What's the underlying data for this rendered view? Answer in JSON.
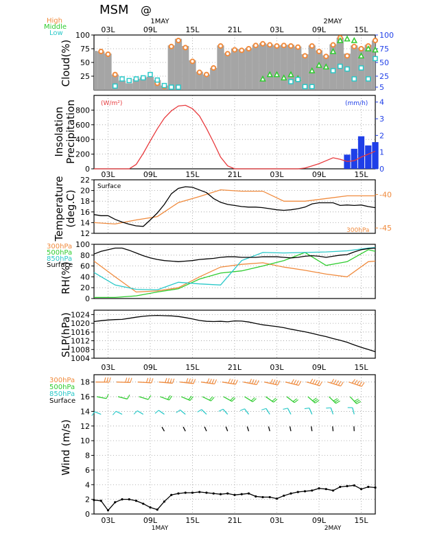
{
  "header": {
    "model": "MSM",
    "location": "@"
  },
  "time_axis": {
    "ticks": [
      "03L",
      "09L",
      "15L",
      "21L",
      "03L",
      "09L",
      "15L"
    ],
    "dates": [
      {
        "label": "1MAY",
        "tick_index": 1
      },
      {
        "label": "2MAY",
        "tick_index": 5
      }
    ]
  },
  "legend_colors": {
    "high": "#f08a3c",
    "middle": "#2ecc2e",
    "low": "#28c8c8",
    "surface": "#000000",
    "insolation": "#e8393c",
    "precip": "#1f3fe8",
    "cloud_fill": "#a5a5a5"
  },
  "chart_data": [
    {
      "id": "cloud",
      "type": "area",
      "ylabel": "Cloud(%)",
      "ylim": [
        0,
        100
      ],
      "yticks_left": [
        25,
        50,
        75,
        100
      ],
      "yticks_right": [
        5,
        25,
        50,
        75,
        100
      ],
      "legend": [
        "High",
        "Middle",
        "Low"
      ],
      "series": [
        {
          "name": "Cloud",
          "x": [
            0,
            1,
            2,
            3,
            4,
            5,
            6,
            7,
            8,
            9,
            10,
            11,
            12,
            13,
            14,
            15,
            16,
            17,
            18,
            19,
            20,
            21,
            22,
            23,
            24,
            25,
            26,
            27,
            28,
            29,
            30,
            31,
            32,
            33,
            34,
            35,
            36,
            37,
            38,
            39,
            40
          ],
          "values": [
            71,
            70,
            66,
            28,
            17,
            12,
            20,
            23,
            24,
            18,
            8,
            81,
            93,
            80,
            54,
            33,
            28,
            40,
            81,
            67,
            75,
            74,
            76,
            82,
            85,
            83,
            81,
            82,
            82,
            79,
            65,
            81,
            72,
            63,
            83,
            95,
            66,
            81,
            77,
            82,
            90
          ]
        },
        {
          "name": "High",
          "x": [
            1,
            2,
            3,
            9,
            10,
            11,
            12,
            13,
            14,
            15,
            16,
            17,
            18,
            19,
            20,
            21,
            22,
            23,
            24,
            25,
            26,
            27,
            28,
            29,
            30,
            31,
            32,
            33,
            34,
            35,
            36,
            37,
            38,
            39,
            40
          ],
          "values": [
            70,
            65,
            28,
            12,
            6,
            79,
            90,
            77,
            52,
            32,
            28,
            40,
            80,
            66,
            73,
            72,
            75,
            81,
            84,
            82,
            80,
            81,
            80,
            78,
            62,
            80,
            70,
            61,
            82,
            95,
            62,
            79,
            75,
            80,
            90
          ]
        },
        {
          "name": "Middle",
          "x": [
            24,
            25,
            26,
            27,
            28,
            29,
            31,
            32,
            33,
            34,
            35,
            36,
            37,
            38,
            39,
            40
          ],
          "values": [
            20,
            28,
            28,
            22,
            28,
            21,
            35,
            45,
            42,
            70,
            90,
            93,
            90,
            62,
            75,
            73
          ]
        },
        {
          "name": "Low",
          "x": [
            3,
            4,
            5,
            6,
            7,
            8,
            9,
            10,
            11,
            12,
            28,
            29,
            30,
            31,
            34,
            35,
            36,
            37,
            38,
            39,
            40
          ],
          "values": [
            7,
            20,
            17,
            20,
            22,
            28,
            18,
            8,
            5,
            5,
            15,
            19,
            6,
            6,
            35,
            43,
            38,
            20,
            40,
            20,
            57
          ]
        }
      ]
    },
    {
      "id": "insolation",
      "type": "line+bar",
      "ylabel": "Insolation",
      "ylabel2": "Precipitation",
      "unit_left": "(W/m²)",
      "unit_right": "(mm/h)",
      "ylim": [
        0,
        1000
      ],
      "yticks_left": [
        0,
        200,
        400,
        600,
        800
      ],
      "yticks_right": [
        0,
        1,
        2,
        3,
        4
      ],
      "series": [
        {
          "name": "Insolation",
          "x": [
            0,
            1,
            2,
            3,
            4,
            5,
            6,
            7,
            8,
            9,
            10,
            11,
            12,
            13,
            14,
            15,
            16,
            17,
            18,
            19,
            20,
            21,
            22,
            23,
            24,
            25,
            26,
            27,
            28,
            29,
            30,
            31,
            32,
            33,
            34,
            35,
            36,
            37,
            38,
            39,
            40
          ],
          "values": [
            0,
            0,
            0,
            0,
            0,
            0,
            60,
            210,
            380,
            545,
            690,
            790,
            855,
            865,
            820,
            720,
            550,
            360,
            160,
            40,
            0,
            0,
            0,
            0,
            0,
            0,
            0,
            0,
            0,
            0,
            10,
            40,
            70,
            110,
            150,
            130,
            100,
            110,
            160,
            200,
            240
          ]
        },
        {
          "name": "Precipitation",
          "x": [
            36,
            37,
            38,
            39,
            40
          ],
          "values": [
            0.85,
            1.2,
            1.95,
            1.4,
            1.6
          ]
        }
      ]
    },
    {
      "id": "temperature",
      "type": "line",
      "ylabel": "Temperature",
      "ylabel2": "(deg.C)",
      "ylim": [
        12,
        22
      ],
      "yticks_left": [
        12,
        14,
        16,
        18,
        20,
        22
      ],
      "yticks_right": [
        -45,
        -40
      ],
      "series": [
        {
          "name": "Surface",
          "x": [
            0,
            1,
            2,
            3,
            4,
            5,
            6,
            7,
            8,
            9,
            10,
            11,
            12,
            13,
            14,
            15,
            16,
            17,
            18,
            19,
            20,
            21,
            22,
            23,
            24,
            25,
            26,
            27,
            28,
            29,
            30,
            31,
            32,
            33,
            34,
            35,
            36,
            37,
            38,
            39,
            40
          ],
          "values": [
            15.5,
            15.3,
            15.3,
            14.6,
            14.1,
            13.7,
            13.4,
            13.3,
            14.5,
            15.8,
            17.4,
            19.4,
            20.4,
            20.7,
            20.6,
            20.1,
            19.6,
            18.5,
            17.8,
            17.4,
            17.2,
            17.0,
            16.9,
            16.9,
            16.8,
            16.6,
            16.4,
            16.3,
            16.4,
            16.6,
            16.9,
            17.5,
            17.7,
            17.7,
            17.7,
            17.2,
            17.3,
            17.2,
            17.3,
            17.0,
            16.8
          ]
        },
        {
          "name": "300hPa",
          "x": [
            0,
            3,
            6,
            9,
            12,
            15,
            18,
            21,
            24,
            27,
            30,
            33,
            36,
            39,
            40
          ],
          "values": [
            -44.2,
            -44.4,
            -43.8,
            -43.3,
            -41.2,
            -40.3,
            -39.3,
            -39.5,
            -39.5,
            -41.0,
            -41.0,
            -40.6,
            -40.2,
            -40.2,
            -40.2
          ]
        }
      ]
    },
    {
      "id": "rh",
      "type": "line",
      "ylabel": "RH(%)",
      "ylim": [
        0,
        100
      ],
      "yticks_left": [
        0,
        20,
        40,
        60,
        80,
        100
      ],
      "legend": [
        "300hPa",
        "500hPa",
        "850hPa",
        "Surface"
      ],
      "series": [
        {
          "name": "300hPa",
          "x": [
            0,
            3,
            6,
            9,
            12,
            15,
            18,
            21,
            24,
            27,
            30,
            33,
            36,
            39,
            40
          ],
          "values": [
            69,
            40,
            12,
            14,
            20,
            40,
            58,
            63,
            66,
            58,
            52,
            45,
            40,
            68,
            69
          ]
        },
        {
          "name": "500hPa",
          "x": [
            0,
            3,
            6,
            9,
            12,
            15,
            18,
            21,
            24,
            27,
            30,
            33,
            36,
            39,
            40
          ],
          "values": [
            2,
            2,
            5,
            12,
            18,
            36,
            47,
            51,
            60,
            70,
            85,
            61,
            68,
            90,
            87
          ]
        },
        {
          "name": "850hPa",
          "x": [
            0,
            3,
            6,
            9,
            12,
            15,
            18,
            21,
            24,
            27,
            30,
            33,
            36,
            39,
            40
          ],
          "values": [
            48,
            25,
            17,
            16,
            30,
            27,
            25,
            70,
            85,
            84,
            85,
            86,
            88,
            93,
            94
          ]
        },
        {
          "name": "Surface",
          "x": [
            0,
            1,
            2,
            3,
            4,
            5,
            6,
            7,
            8,
            9,
            10,
            11,
            12,
            13,
            14,
            15,
            16,
            17,
            18,
            19,
            20,
            21,
            22,
            23,
            24,
            25,
            26,
            27,
            28,
            29,
            30,
            31,
            32,
            33,
            34,
            35,
            36,
            37,
            38,
            39,
            40
          ],
          "values": [
            82,
            87,
            90,
            93,
            93,
            89,
            84,
            79,
            75,
            72,
            70,
            69,
            68,
            69,
            70,
            72,
            73,
            74,
            76,
            77,
            77,
            76,
            76,
            76,
            77,
            77,
            77,
            76,
            75,
            76,
            78,
            79,
            78,
            76,
            78,
            80,
            81,
            86,
            90,
            92,
            93
          ]
        }
      ]
    },
    {
      "id": "slp",
      "type": "line",
      "ylabel": "SLP(hPa)",
      "ylim": [
        1004,
        1026
      ],
      "yticks_left": [
        1004,
        1008,
        1012,
        1016,
        1020,
        1024
      ],
      "series": [
        {
          "name": "Surface",
          "x": [
            0,
            1,
            2,
            3,
            4,
            5,
            6,
            7,
            8,
            9,
            10,
            11,
            12,
            13,
            14,
            15,
            16,
            17,
            18,
            19,
            20,
            21,
            22,
            23,
            24,
            25,
            26,
            27,
            28,
            29,
            30,
            31,
            32,
            33,
            34,
            35,
            36,
            37,
            38,
            39,
            40
          ],
          "values": [
            1020.8,
            1021.2,
            1021.5,
            1021.7,
            1021.8,
            1022.3,
            1022.8,
            1023.2,
            1023.5,
            1023.6,
            1023.5,
            1023.4,
            1023.1,
            1022.6,
            1022.0,
            1021.3,
            1020.9,
            1020.8,
            1020.9,
            1020.7,
            1021.1,
            1021.0,
            1020.6,
            1019.9,
            1019.3,
            1018.9,
            1018.5,
            1018.0,
            1017.3,
            1016.7,
            1016.1,
            1015.4,
            1014.6,
            1013.9,
            1013.0,
            1012.2,
            1011.3,
            1010.1,
            1009.0,
            1008.0,
            1007.0
          ]
        }
      ]
    },
    {
      "id": "wind",
      "type": "line",
      "ylabel": "Wind (m/s)",
      "ylim": [
        0,
        19
      ],
      "yticks_left": [
        0,
        2,
        4,
        6,
        8,
        10,
        12,
        14,
        16,
        18
      ],
      "legend": [
        "300hPa",
        "500hPa",
        "850hPa",
        "Surface"
      ],
      "series": [
        {
          "name": "Surface",
          "x": [
            0,
            1,
            2,
            3,
            4,
            5,
            6,
            7,
            8,
            9,
            10,
            11,
            12,
            13,
            14,
            15,
            16,
            17,
            18,
            19,
            20,
            21,
            22,
            23,
            24,
            25,
            26,
            27,
            28,
            29,
            30,
            31,
            32,
            33,
            34,
            35,
            36,
            37,
            38,
            39,
            40
          ],
          "values": [
            1.9,
            1.8,
            0.5,
            1.6,
            2.0,
            2.0,
            1.8,
            1.4,
            0.9,
            0.6,
            1.7,
            2.6,
            2.8,
            2.9,
            2.9,
            3.0,
            2.9,
            2.8,
            2.7,
            2.8,
            2.6,
            2.7,
            2.8,
            2.4,
            2.3,
            2.3,
            2.1,
            2.5,
            2.8,
            3.0,
            3.1,
            3.2,
            3.5,
            3.4,
            3.2,
            3.7,
            3.8,
            3.9,
            3.4,
            3.7,
            3.6
          ]
        }
      ]
    }
  ]
}
